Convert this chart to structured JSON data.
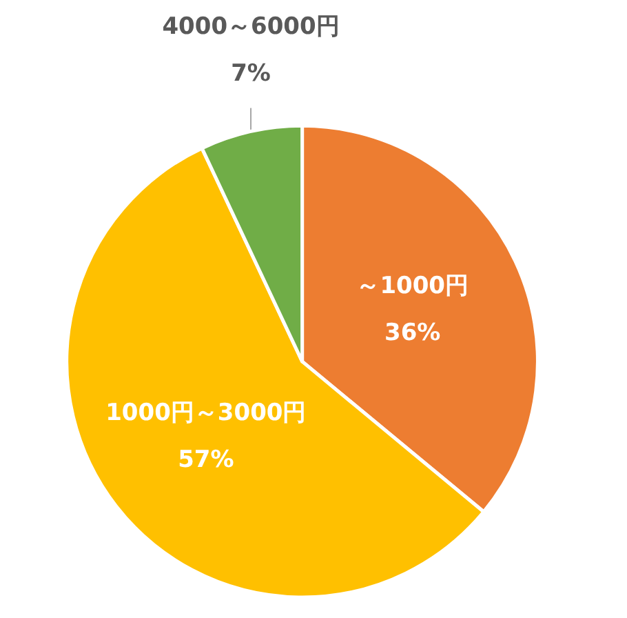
{
  "chart_data": {
    "type": "pie",
    "categories": [
      "～1000円",
      "1000円～3000円",
      "4000～6000円"
    ],
    "values": [
      36,
      57,
      7
    ],
    "colors": [
      "#ed7d31",
      "#ffc000",
      "#70ad47"
    ],
    "value_labels": [
      "36%",
      "57%",
      "7%"
    ]
  }
}
